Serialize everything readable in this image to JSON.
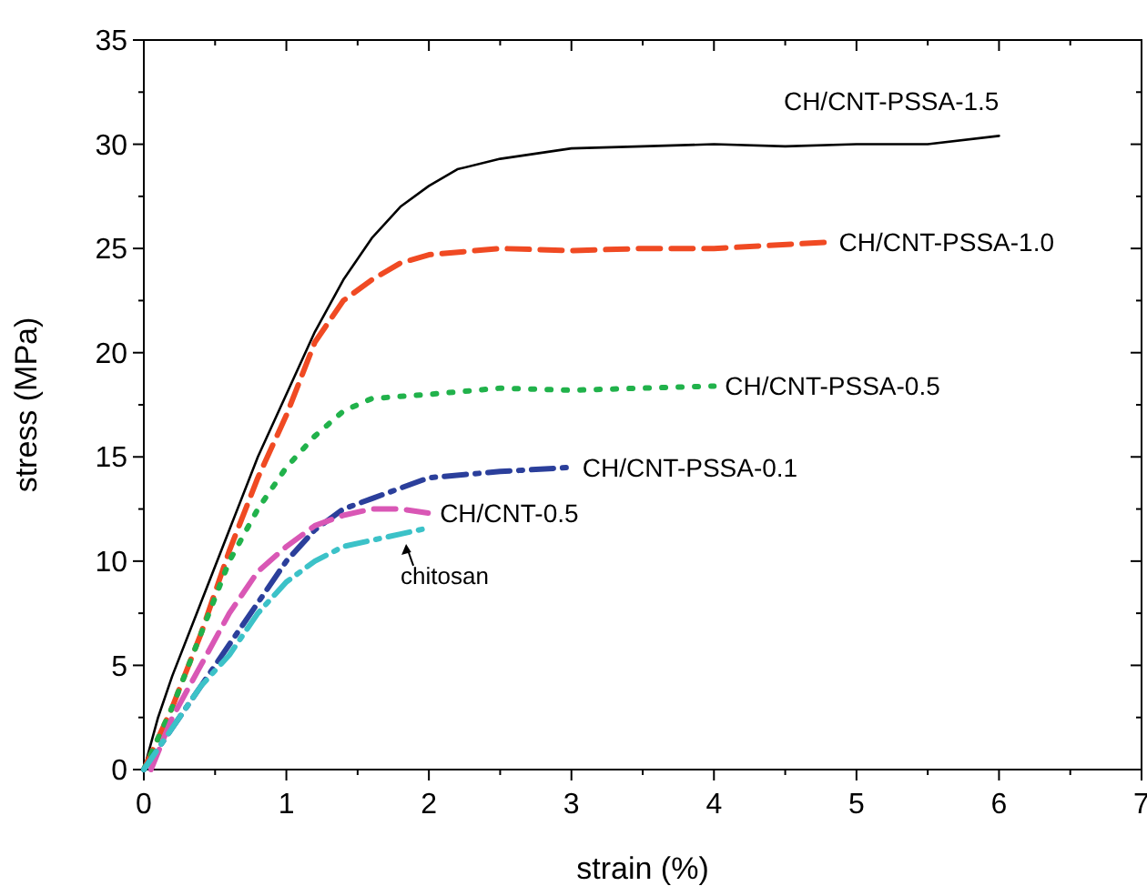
{
  "chart_data": {
    "type": "line",
    "xlabel": "strain (%)",
    "ylabel": "stress (MPa)",
    "xlim": [
      0,
      7
    ],
    "ylim": [
      0,
      35
    ],
    "xticks": [
      0,
      1,
      2,
      3,
      4,
      5,
      6,
      7
    ],
    "yticks": [
      0,
      5,
      10,
      15,
      20,
      25,
      30,
      35
    ],
    "grid": false,
    "marker": "none",
    "series": [
      {
        "name": "CH/CNT-PSSA-1.5",
        "color": "#000000",
        "line_style": "solid",
        "x": [
          0,
          0.1,
          0.2,
          0.4,
          0.6,
          0.8,
          1,
          1.2,
          1.4,
          1.6,
          1.8,
          2,
          2.2,
          2.5,
          3,
          3.5,
          4,
          4.5,
          5,
          5.5,
          6
        ],
        "values": [
          0,
          2.5,
          4.5,
          8,
          11.5,
          15,
          18,
          21,
          23.5,
          25.5,
          27,
          28,
          28.8,
          29.3,
          29.8,
          29.9,
          30,
          29.9,
          30,
          30,
          30.4
        ]
      },
      {
        "name": "CH/CNT-PSSA-1.0",
        "color": "#f04a23",
        "line_style": "dashed",
        "x": [
          0,
          0.2,
          0.4,
          0.6,
          0.8,
          1,
          1.2,
          1.4,
          1.6,
          1.8,
          2,
          2.5,
          3,
          3.5,
          4,
          4.8
        ],
        "values": [
          0,
          3,
          6.5,
          10.5,
          14,
          17,
          20.5,
          22.5,
          23.5,
          24.3,
          24.7,
          25,
          24.9,
          25,
          25,
          25.3
        ]
      },
      {
        "name": "CH/CNT-PSSA-0.5",
        "color": "#21b24b",
        "line_style": "dotted",
        "x": [
          0,
          0.2,
          0.4,
          0.6,
          0.8,
          1,
          1.2,
          1.4,
          1.6,
          2,
          2.5,
          3,
          3.5,
          4
        ],
        "values": [
          0,
          3,
          6.5,
          10,
          12.5,
          14.5,
          16,
          17.2,
          17.8,
          18,
          18.3,
          18.2,
          18.3,
          18.4
        ]
      },
      {
        "name": "CH/CNT-PSSA-0.1",
        "color": "#2b3f9b",
        "line_style": "dashdot",
        "x": [
          0,
          0.2,
          0.4,
          0.6,
          0.8,
          1,
          1.2,
          1.4,
          1.6,
          1.8,
          2,
          2.5,
          3
        ],
        "values": [
          0,
          2,
          4,
          6,
          8,
          10,
          11.5,
          12.5,
          13,
          13.5,
          14,
          14.3,
          14.5
        ]
      },
      {
        "name": "CH/CNT-0.5",
        "color": "#d957b5",
        "line_style": "dashed",
        "x": [
          0.05,
          0.2,
          0.4,
          0.6,
          0.8,
          1,
          1.2,
          1.4,
          1.6,
          1.8,
          2
        ],
        "values": [
          0,
          2.5,
          5,
          7.5,
          9.5,
          10.7,
          11.7,
          12.2,
          12.5,
          12.5,
          12.3
        ]
      },
      {
        "color": "#3cc2c8",
        "line_style": "dashdot",
        "x": [
          0,
          0.2,
          0.4,
          0.6,
          0.8,
          1,
          1.2,
          1.4,
          1.6,
          1.8,
          2
        ],
        "values": [
          0,
          2,
          4,
          5.5,
          7.5,
          9,
          10,
          10.7,
          11,
          11.3,
          11.6
        ]
      }
    ],
    "annotations": [
      {
        "text": "chitosan",
        "x": 1.84,
        "y": 11
      }
    ]
  }
}
